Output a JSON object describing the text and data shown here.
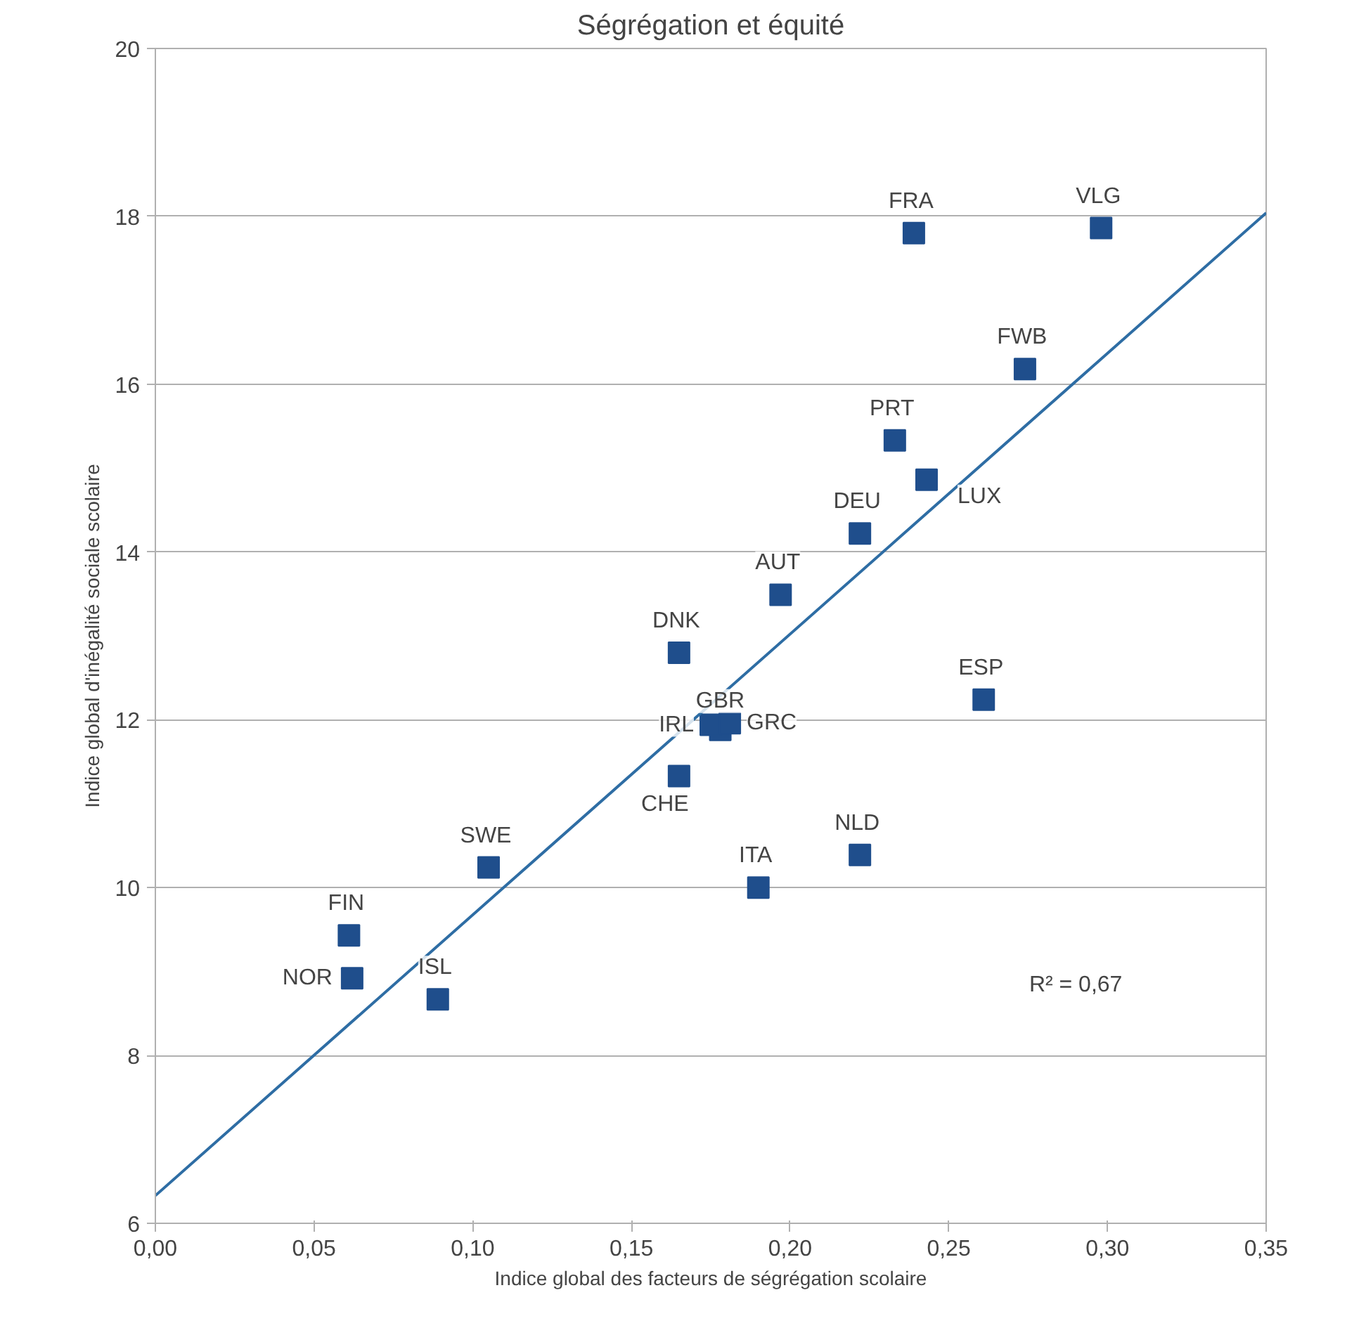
{
  "chart_data": {
    "type": "scatter",
    "title": "Ségrégation et équité",
    "xlabel": "Indice global des facteurs de ségrégation scolaire",
    "ylabel": "Indice global d'inégalité sociale scolaire",
    "xlim": [
      0,
      0.35
    ],
    "ylim": [
      6,
      20
    ],
    "xticks": [
      {
        "value": 0,
        "label": "0,00"
      },
      {
        "value": 0.05,
        "label": "0,05"
      },
      {
        "value": 0.1,
        "label": "0,10"
      },
      {
        "value": 0.15,
        "label": "0,15"
      },
      {
        "value": 0.2,
        "label": "0,20"
      },
      {
        "value": 0.25,
        "label": "0,25"
      },
      {
        "value": 0.3,
        "label": "0,30"
      },
      {
        "value": 0.35,
        "label": "0,35"
      }
    ],
    "yticks": [
      6,
      8,
      10,
      12,
      14,
      16,
      18,
      20
    ],
    "grid": "y",
    "annotations": [
      "R² = 0,67"
    ],
    "series": [
      {
        "marker": "square",
        "color": "#1f4e8c",
        "x": [
          0.239,
          0.298,
          0.274,
          0.233,
          0.243,
          0.222,
          0.197,
          0.165,
          0.261,
          0.178,
          0.175,
          0.181,
          0.165,
          0.222,
          0.19,
          0.105,
          0.061,
          0.062,
          0.089
        ],
        "values": [
          17.8,
          17.86,
          16.18,
          15.33,
          14.86,
          14.22,
          13.49,
          12.8,
          12.24,
          11.88,
          11.94,
          11.96,
          11.33,
          10.39,
          10.0,
          10.24,
          9.43,
          8.92,
          8.67
        ],
        "value_labels": [
          "FRA",
          "VLG",
          "FWB",
          "PRT",
          "LUX",
          "DEU",
          "AUT",
          "DNK",
          "ESP",
          "GBR",
          "IRL",
          "GRC",
          "CHE",
          "NLD",
          "ITA",
          "SWE",
          "FIN",
          "NOR",
          "ISL"
        ]
      },
      {
        "type": "line",
        "color": "#2e6da4",
        "x": [
          0,
          0.35
        ],
        "values": [
          6.33,
          18.04
        ],
        "line_style": "solid"
      }
    ]
  }
}
